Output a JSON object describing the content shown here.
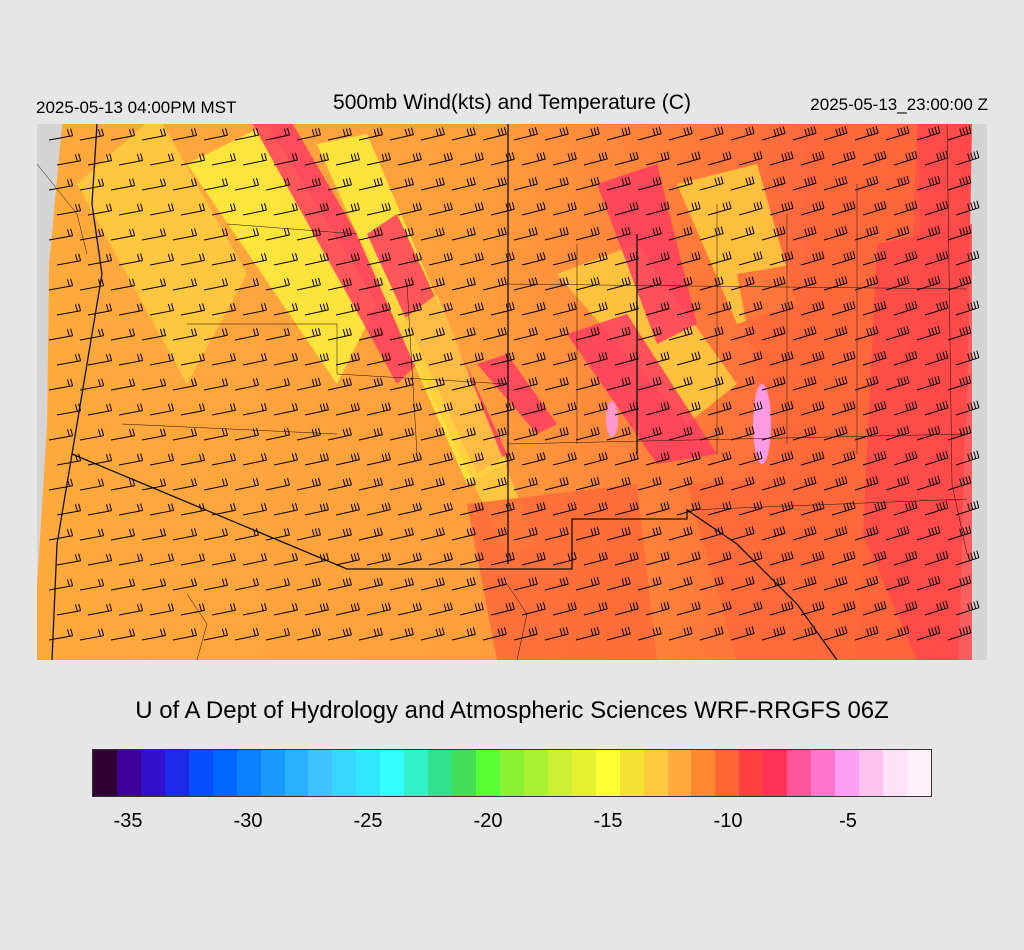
{
  "header": {
    "valid_local": "2025-05-13 04:00PM MST",
    "title": "500mb Wind(kts) and Temperature (C)",
    "valid_utc": "2025-05-13_23:00:00 Z"
  },
  "credit": "U of A Dept of Hydrology and Atmospheric Sciences WRF-RRGFS 06Z",
  "colorbar": {
    "colors": [
      "#330033",
      "#3d0099",
      "#3311cc",
      "#1a2ae6",
      "#0a4dff",
      "#0066ff",
      "#0a80ff",
      "#1a99ff",
      "#2ab0ff",
      "#40c4ff",
      "#38d6ff",
      "#33e6ff",
      "#33ffff",
      "#33f0c8",
      "#33e08c",
      "#44dd55",
      "#55ff33",
      "#8cf033",
      "#aaf033",
      "#ccf033",
      "#e6f033",
      "#ffff33",
      "#f5e033",
      "#ffc83d",
      "#ffaa3d",
      "#ff8833",
      "#ff6633",
      "#ff4040",
      "#ff3355",
      "#ff5599",
      "#ff77cc",
      "#ff9ef5",
      "#ffc2ef",
      "#ffe0f7",
      "#fff0fa"
    ],
    "labels": [
      "-35",
      "-30",
      "-25",
      "-20",
      "-15",
      "-10",
      "-5"
    ],
    "label_positions": [
      1,
      6,
      11,
      16,
      21,
      26,
      31
    ]
  },
  "map_colors": {
    "base": "#ff9e3d",
    "warm": "#ff6a3a",
    "warmer": "#ff4a4a",
    "cool": "#ffcc40",
    "cold": "#ffef3d",
    "band": "#ff3d60",
    "pink": "#ff9ef5",
    "barb": "#000000",
    "border": "#111111"
  }
}
